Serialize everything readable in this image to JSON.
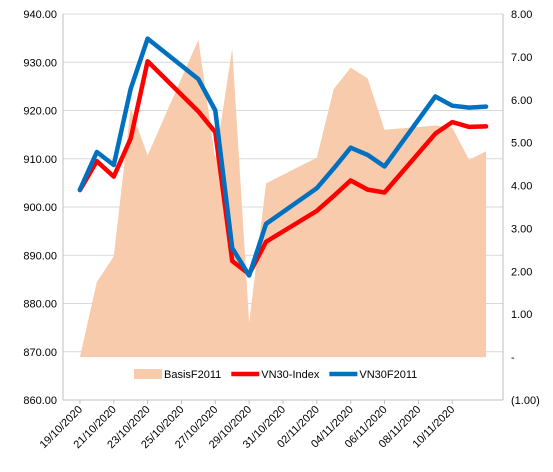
{
  "chart_data": {
    "type": "line",
    "title": "",
    "xlabel": "",
    "ylabel": "",
    "ylim": [
      860,
      940
    ],
    "y2lim": [
      -1,
      8
    ],
    "grid": true,
    "legend_position": "bottom-inside",
    "y_ticks": [
      "860.00",
      "870.00",
      "880.00",
      "890.00",
      "900.00",
      "910.00",
      "920.00",
      "930.00",
      "940.00"
    ],
    "y2_ticks": [
      "(1.00)",
      "-",
      "1.00",
      "2.00",
      "3.00",
      "4.00",
      "5.00",
      "6.00",
      "7.00",
      "8.00"
    ],
    "x_ticks": [
      "19/10/2020",
      "21/10/2020",
      "23/10/2020",
      "25/10/2020",
      "27/10/2020",
      "29/10/2020",
      "31/10/2020",
      "02/11/2020",
      "04/11/2020",
      "06/11/2020",
      "08/11/2020",
      "10/11/2020"
    ],
    "x": [
      "2020-10-19",
      "2020-10-20",
      "2020-10-21",
      "2020-10-22",
      "2020-10-23",
      "2020-10-26",
      "2020-10-27",
      "2020-10-28",
      "2020-10-29",
      "2020-10-30",
      "2020-11-02",
      "2020-11-03",
      "2020-11-04",
      "2020-11-05",
      "2020-11-06",
      "2020-11-09",
      "2020-11-10",
      "2020-11-11",
      "2020-11-12"
    ],
    "series": [
      {
        "name": "BasisF2011",
        "axis": "right",
        "kind": "area",
        "color": "#F8CBAD",
        "values": [
          0.0,
          1.75,
          2.35,
          5.8,
          4.7,
          7.4,
          4.6,
          7.2,
          0.8,
          4.05,
          4.65,
          6.25,
          6.75,
          6.5,
          5.3,
          5.4,
          5.35,
          4.6,
          4.8
        ]
      },
      {
        "name": "VN30-Index",
        "axis": "left",
        "kind": "line",
        "color": "#FF0000",
        "values": [
          903.5,
          909.5,
          906.3,
          914.2,
          930.2,
          919.8,
          915.5,
          888.8,
          886.1,
          892.8,
          899.2,
          902.3,
          905.5,
          903.6,
          903.0,
          915.2,
          917.6,
          916.6,
          916.7
        ]
      },
      {
        "name": "VN30F2011",
        "axis": "left",
        "kind": "line",
        "color": "#0070C0",
        "values": [
          903.6,
          911.4,
          908.7,
          924.5,
          934.9,
          926.5,
          920.0,
          891.5,
          885.8,
          896.5,
          903.9,
          908.0,
          912.3,
          910.8,
          908.4,
          922.9,
          921.0,
          920.6,
          920.8
        ]
      }
    ]
  }
}
